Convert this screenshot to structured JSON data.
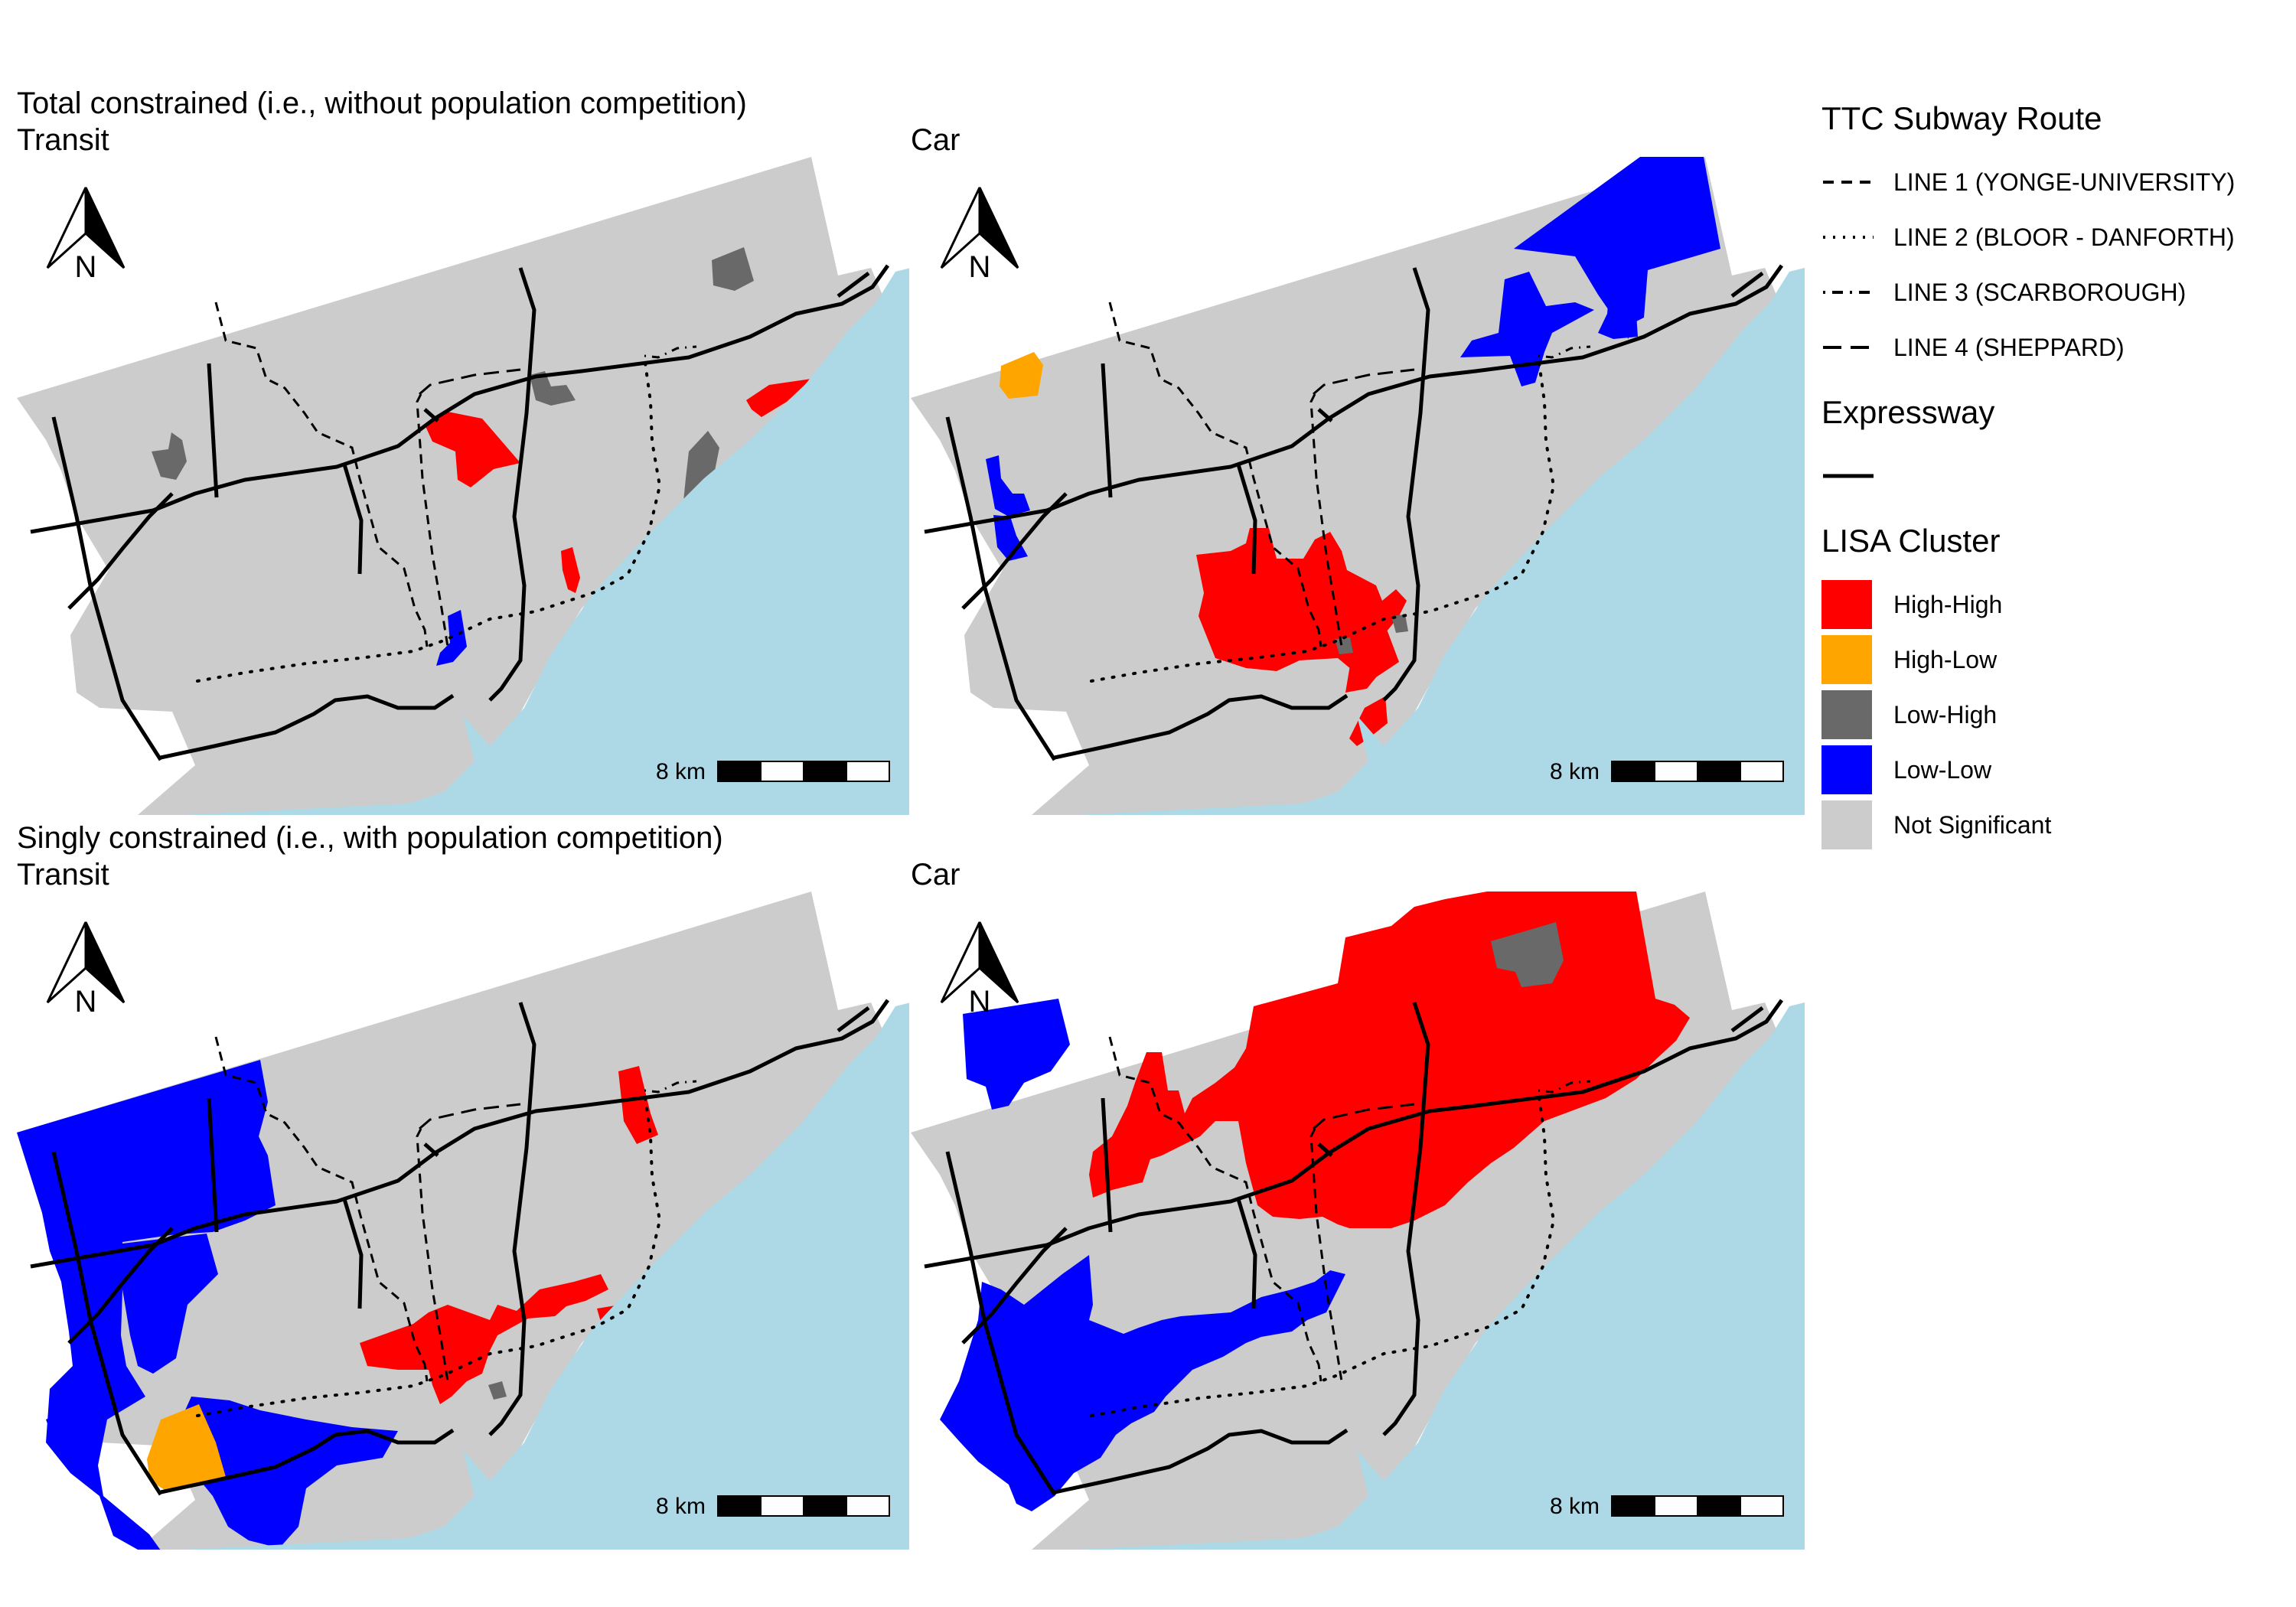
{
  "sections": {
    "total": "Total constrained (i.e., without population competition)",
    "singly": "Singly constrained (i.e., with population competition)"
  },
  "panels": [
    {
      "mode": "Transit",
      "scale_label": "8 km"
    },
    {
      "mode": "Car",
      "scale_label": "8 km"
    },
    {
      "mode": "Transit",
      "scale_label": "8 km"
    },
    {
      "mode": "Car",
      "scale_label": "8 km"
    }
  ],
  "north_label": "N",
  "legend": {
    "subway_title": "TTC Subway Route",
    "subway_lines": [
      {
        "label": "LINE 1 (YONGE-UNIVERSITY)",
        "style": "dashed"
      },
      {
        "label": "LINE 2 (BLOOR - DANFORTH)",
        "style": "dotted"
      },
      {
        "label": "LINE 3 (SCARBOROUGH)",
        "style": "dotdash"
      },
      {
        "label": "LINE 4 (SHEPPARD)",
        "style": "longdash"
      }
    ],
    "expressway_title": "Expressway",
    "lisa_title": "LISA Cluster",
    "lisa_classes": [
      {
        "label": "High-High",
        "color": "#ff0000"
      },
      {
        "label": "High-Low",
        "color": "#ffa500"
      },
      {
        "label": "Low-High",
        "color": "#696969"
      },
      {
        "label": "Low-Low",
        "color": "#0000ff"
      },
      {
        "label": "Not Significant",
        "color": "#cccccc"
      }
    ]
  },
  "colors": {
    "water": "#add8e6",
    "land": "#cccccc",
    "high_high": "#ff0000",
    "high_low": "#ffa500",
    "low_high": "#696969",
    "low_low": "#0000ff"
  }
}
